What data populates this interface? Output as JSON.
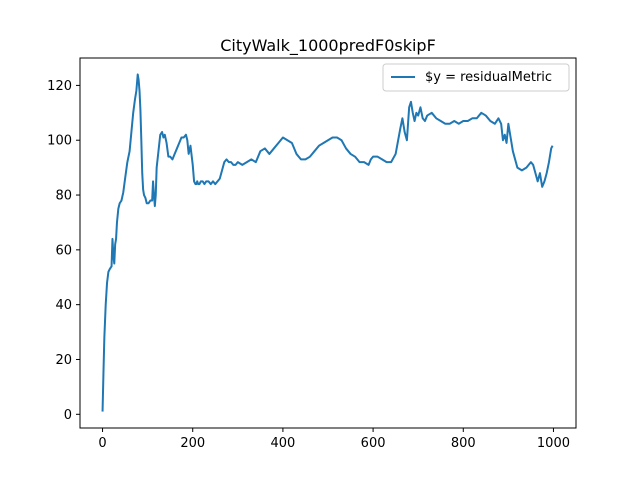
{
  "chart_data": {
    "type": "line",
    "title": "CityWalk_1000predF0skipF",
    "xlabel": "",
    "ylabel": "",
    "xlim": [
      -50,
      1050
    ],
    "ylim": [
      -5,
      130
    ],
    "xticks": [
      0,
      200,
      400,
      600,
      800,
      1000
    ],
    "yticks": [
      0,
      20,
      40,
      60,
      80,
      100,
      120
    ],
    "grid": false,
    "legend_position": "top-right",
    "series": [
      {
        "name": "$y = residualMetric",
        "color": "#1f77b4",
        "x": [
          0,
          2,
          4,
          7,
          10,
          13,
          16,
          20,
          22,
          24,
          26,
          28,
          30,
          32,
          35,
          38,
          42,
          46,
          50,
          55,
          60,
          64,
          68,
          72,
          75,
          78,
          80,
          82,
          84,
          86,
          88,
          90,
          92,
          95,
          98,
          102,
          106,
          110,
          112,
          114,
          116,
          118,
          120,
          124,
          128,
          132,
          135,
          138,
          142,
          146,
          150,
          155,
          160,
          165,
          170,
          175,
          180,
          185,
          188,
          191,
          195,
          200,
          203,
          206,
          208,
          210,
          212,
          215,
          218,
          222,
          226,
          230,
          235,
          240,
          245,
          250,
          255,
          260,
          265,
          270,
          275,
          280,
          285,
          290,
          295,
          300,
          310,
          320,
          330,
          340,
          350,
          360,
          370,
          380,
          390,
          395,
          400,
          410,
          420,
          430,
          440,
          450,
          460,
          470,
          480,
          490,
          500,
          510,
          520,
          530,
          540,
          550,
          560,
          570,
          580,
          590,
          595,
          600,
          610,
          620,
          630,
          640,
          650,
          660,
          665,
          670,
          675,
          680,
          684,
          688,
          692,
          696,
          700,
          705,
          710,
          715,
          720,
          730,
          740,
          750,
          760,
          770,
          780,
          790,
          800,
          810,
          820,
          830,
          840,
          850,
          860,
          870,
          878,
          884,
          888,
          892,
          896,
          900,
          905,
          910,
          920,
          930,
          940,
          950,
          955,
          960,
          965,
          970,
          975,
          980,
          985,
          990,
          995,
          998
        ],
        "y": [
          1,
          15,
          28,
          40,
          48,
          52,
          53,
          54,
          64,
          58,
          55,
          62,
          64,
          70,
          75,
          77,
          78,
          81,
          86,
          92,
          96,
          103,
          110,
          115,
          118,
          124,
          122,
          118,
          111,
          100,
          88,
          82,
          80,
          79,
          77,
          77,
          78,
          78,
          85,
          80,
          76,
          80,
          90,
          96,
          102,
          103,
          101,
          102,
          99,
          94,
          94,
          93,
          95,
          97,
          99,
          101,
          101,
          102,
          100,
          95,
          98,
          91,
          85,
          84,
          84,
          85,
          84,
          84,
          85,
          85,
          84,
          85,
          85,
          84,
          85,
          84,
          85,
          86,
          89,
          92,
          93,
          92,
          92,
          91,
          91,
          92,
          91,
          92,
          93,
          92,
          96,
          97,
          95,
          97,
          99,
          100,
          101,
          100,
          99,
          95,
          93,
          93,
          94,
          96,
          98,
          99,
          100,
          101,
          101,
          100,
          97,
          95,
          94,
          92,
          92,
          91,
          93,
          94,
          94,
          93,
          92,
          92,
          95,
          104,
          108,
          103,
          100,
          112,
          114,
          110,
          107,
          110,
          109,
          112,
          108,
          107,
          109,
          110,
          108,
          107,
          106,
          106,
          107,
          106,
          107,
          107,
          108,
          108,
          110,
          109,
          107,
          106,
          108,
          106,
          100,
          102,
          99,
          106,
          101,
          96,
          90,
          89,
          90,
          92,
          91,
          88,
          85,
          88,
          83,
          85,
          88,
          92,
          97,
          98
        ]
      }
    ]
  }
}
